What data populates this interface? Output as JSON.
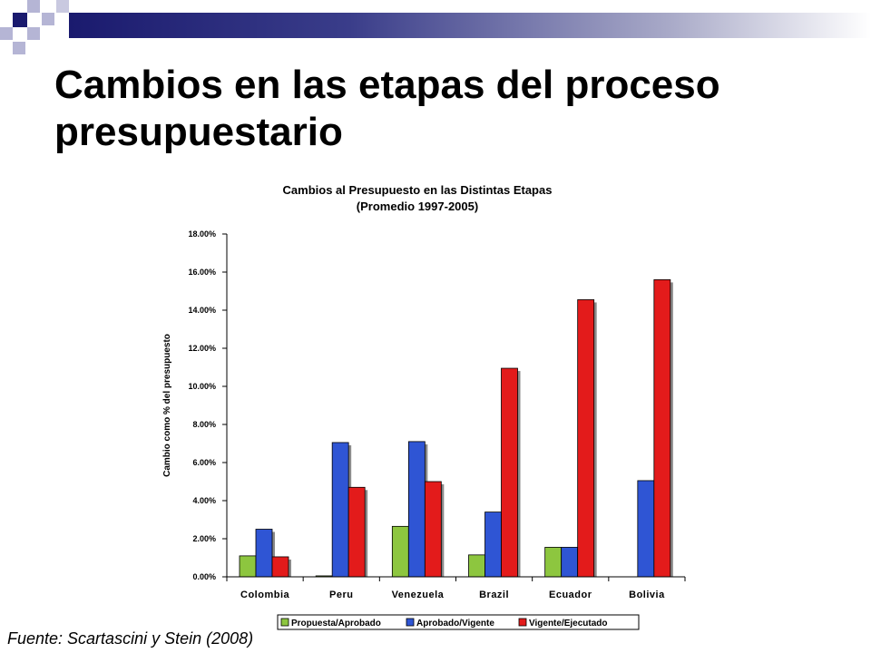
{
  "slide": {
    "title": "Cambios en las etapas del proceso presupuestario",
    "source": "Fuente: Scartascini y Stein (2008)"
  },
  "colors": {
    "deco_dark": "#1a1a6e",
    "deco_light": "#b5b5d5",
    "series": [
      "#8dc63f",
      "#2f55d4",
      "#e31b1b"
    ]
  },
  "chart_data": {
    "type": "bar",
    "title": "Cambios al Presupuesto en las Distintas Etapas",
    "subtitle": "(Promedio 1997-2005)",
    "ylabel": "Cambio como % del presupuesto",
    "xlabel": "",
    "ylim": [
      0,
      18
    ],
    "yticks": [
      "0.00%",
      "2.00%",
      "4.00%",
      "6.00%",
      "8.00%",
      "10.00%",
      "12.00%",
      "14.00%",
      "16.00%",
      "18.00%"
    ],
    "categories": [
      "Colombia",
      "Peru",
      "Venezuela",
      "Brazil",
      "Ecuador",
      "Bolivia"
    ],
    "series": [
      {
        "name": "Propuesta/Aprobado",
        "color": "#8dc63f",
        "values": [
          1.1,
          0.05,
          2.65,
          1.15,
          1.55,
          0
        ]
      },
      {
        "name": "Aprobado/Vigente",
        "color": "#2f55d4",
        "values": [
          2.5,
          7.05,
          7.1,
          3.4,
          1.55,
          5.05
        ]
      },
      {
        "name": "Vigente/Ejecutado",
        "color": "#e31b1b",
        "values": [
          1.05,
          4.7,
          5.0,
          10.95,
          14.55,
          15.6
        ]
      }
    ],
    "legend_position": "bottom",
    "grid": false
  }
}
